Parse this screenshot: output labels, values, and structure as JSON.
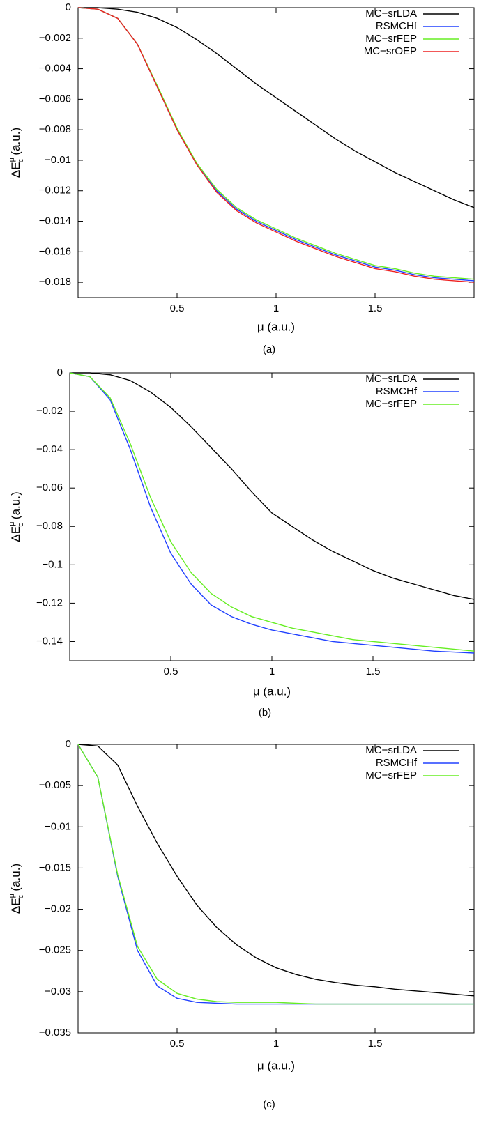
{
  "chart_data": [
    {
      "type": "line",
      "caption": "(a)",
      "xlabel": "μ (a.u.)",
      "ylabel": {
        "base": "ΔE",
        "sub": "c",
        "sup": "μ",
        "unit": "(a.u.)"
      },
      "xlim": [
        0,
        2
      ],
      "ylim": [
        -0.019,
        0
      ],
      "xticks": [
        0.5,
        1,
        1.5
      ],
      "yticks": [
        0,
        {
          "value": -0.002,
          "label": "−0.002"
        },
        {
          "value": -0.004,
          "label": "−0.004"
        },
        {
          "value": -0.006,
          "label": "−0.006"
        },
        {
          "value": -0.008,
          "label": "−0.008"
        },
        {
          "value": -0.01,
          "label": "−0.01"
        },
        {
          "value": -0.012,
          "label": "−0.012"
        },
        {
          "value": -0.014,
          "label": "−0.014"
        },
        {
          "value": -0.016,
          "label": "−0.016"
        },
        {
          "value": -0.018,
          "label": "−0.018"
        }
      ],
      "legend": "upper-right",
      "x": [
        0,
        0.1,
        0.2,
        0.3,
        0.4,
        0.5,
        0.6,
        0.7,
        0.8,
        0.9,
        1.0,
        1.1,
        1.2,
        1.3,
        1.4,
        1.5,
        1.6,
        1.7,
        1.8,
        1.9,
        2.0
      ],
      "series": [
        {
          "name": "MC−srLDA",
          "color": "#000000",
          "values": [
            0,
            0,
            -0.0001,
            -0.0003,
            -0.0007,
            -0.0013,
            -0.0021,
            -0.003,
            -0.004,
            -0.005,
            -0.0059,
            -0.0068,
            -0.0077,
            -0.0086,
            -0.0094,
            -0.0101,
            -0.0108,
            -0.0114,
            -0.012,
            -0.0126,
            -0.0131
          ]
        },
        {
          "name": "RSMCHf",
          "color": "#2040ff",
          "values": [
            0,
            -0.0001,
            -0.0007,
            -0.0024,
            -0.0052,
            -0.008,
            -0.0103,
            -0.012,
            -0.0132,
            -0.014,
            -0.0146,
            -0.0152,
            -0.0157,
            -0.0162,
            -0.0166,
            -0.017,
            -0.0172,
            -0.0175,
            -0.0177,
            -0.0178,
            -0.0179
          ]
        },
        {
          "name": "MC−srFEP",
          "color": "#66ee22",
          "values": [
            0,
            -0.0001,
            -0.0007,
            -0.0024,
            -0.0051,
            -0.0079,
            -0.0102,
            -0.0119,
            -0.0131,
            -0.0139,
            -0.0145,
            -0.0151,
            -0.0156,
            -0.0161,
            -0.0165,
            -0.0169,
            -0.0171,
            -0.0174,
            -0.0176,
            -0.0177,
            -0.0178
          ]
        },
        {
          "name": "MC−srOEP",
          "color": "#ee2020",
          "values": [
            0,
            -0.0001,
            -0.0007,
            -0.0024,
            -0.0052,
            -0.008,
            -0.0103,
            -0.0121,
            -0.0133,
            -0.0141,
            -0.0147,
            -0.0153,
            -0.0158,
            -0.0163,
            -0.0167,
            -0.0171,
            -0.0173,
            -0.0176,
            -0.0178,
            -0.0179,
            -0.018
          ]
        }
      ]
    },
    {
      "type": "line",
      "caption": "(b)",
      "xlabel": "μ (a.u.)",
      "ylabel": {
        "base": "ΔE",
        "sub": "c",
        "sup": "μ",
        "unit": "(a.u.)"
      },
      "xlim": [
        0,
        2
      ],
      "ylim": [
        -0.15,
        0
      ],
      "xticks": [
        0.5,
        1,
        1.5
      ],
      "yticks": [
        0,
        {
          "value": -0.02,
          "label": "−0.02"
        },
        {
          "value": -0.04,
          "label": "−0.04"
        },
        {
          "value": -0.06,
          "label": "−0.06"
        },
        {
          "value": -0.08,
          "label": "−0.08"
        },
        {
          "value": -0.1,
          "label": "−0.1"
        },
        {
          "value": -0.12,
          "label": "−0.12"
        },
        {
          "value": -0.14,
          "label": "−0.14"
        }
      ],
      "legend": "upper-right",
      "x": [
        0,
        0.1,
        0.2,
        0.3,
        0.4,
        0.5,
        0.6,
        0.7,
        0.8,
        0.9,
        1.0,
        1.1,
        1.2,
        1.3,
        1.4,
        1.5,
        1.6,
        1.7,
        1.8,
        1.9,
        2.0
      ],
      "series": [
        {
          "name": "MC−srLDA",
          "color": "#000000",
          "values": [
            0,
            0,
            -0.001,
            -0.004,
            -0.01,
            -0.018,
            -0.028,
            -0.039,
            -0.05,
            -0.062,
            -0.073,
            -0.08,
            -0.087,
            -0.093,
            -0.098,
            -0.103,
            -0.107,
            -0.11,
            -0.113,
            -0.116,
            -0.118
          ]
        },
        {
          "name": "RSMCHf",
          "color": "#2040ff",
          "values": [
            0,
            -0.002,
            -0.014,
            -0.04,
            -0.07,
            -0.094,
            -0.11,
            -0.121,
            -0.127,
            -0.131,
            -0.134,
            -0.136,
            -0.138,
            -0.14,
            -0.141,
            -0.142,
            -0.143,
            -0.144,
            -0.145,
            -0.1455,
            -0.146
          ]
        },
        {
          "name": "MC−srFEP",
          "color": "#66ee22",
          "values": [
            0,
            -0.002,
            -0.013,
            -0.037,
            -0.065,
            -0.088,
            -0.104,
            -0.115,
            -0.122,
            -0.127,
            -0.13,
            -0.133,
            -0.135,
            -0.137,
            -0.139,
            -0.14,
            -0.141,
            -0.142,
            -0.143,
            -0.144,
            -0.145
          ]
        }
      ]
    },
    {
      "type": "line",
      "caption": "(c)",
      "xlabel": "μ (a.u.)",
      "ylabel": {
        "base": "ΔE",
        "sub": "c",
        "sup": "μ",
        "unit": "(a.u.)"
      },
      "xlim": [
        0,
        2
      ],
      "ylim": [
        -0.035,
        0
      ],
      "xticks": [
        0.5,
        1,
        1.5
      ],
      "yticks": [
        0,
        {
          "value": -0.005,
          "label": "−0.005"
        },
        {
          "value": -0.01,
          "label": "−0.01"
        },
        {
          "value": -0.015,
          "label": "−0.015"
        },
        {
          "value": -0.02,
          "label": "−0.02"
        },
        {
          "value": -0.025,
          "label": "−0.025"
        },
        {
          "value": -0.03,
          "label": "−0.03"
        },
        {
          "value": -0.035,
          "label": "−0.035"
        }
      ],
      "legend": "upper-right",
      "x": [
        0,
        0.1,
        0.2,
        0.3,
        0.4,
        0.5,
        0.6,
        0.7,
        0.8,
        0.9,
        1.0,
        1.1,
        1.2,
        1.3,
        1.4,
        1.5,
        1.6,
        1.7,
        1.8,
        1.9,
        2.0
      ],
      "series": [
        {
          "name": "MC−srLDA",
          "color": "#000000",
          "values": [
            0,
            -0.0002,
            -0.0025,
            -0.0075,
            -0.012,
            -0.016,
            -0.0195,
            -0.0222,
            -0.0243,
            -0.0259,
            -0.0271,
            -0.0279,
            -0.0285,
            -0.0289,
            -0.0292,
            -0.0294,
            -0.0297,
            -0.0299,
            -0.0301,
            -0.0303,
            -0.0305
          ]
        },
        {
          "name": "RSMCHf",
          "color": "#2040ff",
          "values": [
            0,
            -0.004,
            -0.016,
            -0.025,
            -0.0293,
            -0.0308,
            -0.0313,
            -0.0314,
            -0.0315,
            -0.0315,
            -0.0315,
            -0.0315,
            -0.0315,
            -0.0315,
            -0.0315,
            -0.0315,
            -0.0315,
            -0.0315,
            -0.0315,
            -0.0315,
            -0.0315
          ]
        },
        {
          "name": "MC−srFEP",
          "color": "#66ee22",
          "values": [
            0,
            -0.004,
            -0.0158,
            -0.0245,
            -0.0285,
            -0.0302,
            -0.0309,
            -0.0312,
            -0.0313,
            -0.0313,
            -0.0313,
            -0.0314,
            -0.0315,
            -0.0315,
            -0.0315,
            -0.0315,
            -0.0315,
            -0.0315,
            -0.0315,
            -0.0315,
            -0.0315
          ]
        }
      ]
    }
  ]
}
